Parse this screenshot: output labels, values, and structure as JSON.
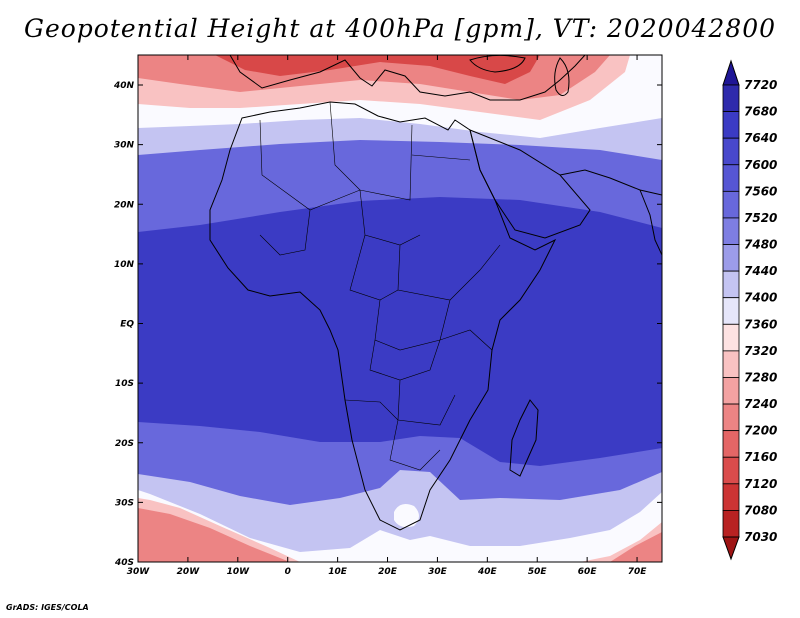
{
  "map": {
    "title": "Geopotential Height at 400hPa [gpm], VT: 2020042800",
    "credit": "GrADS: IGES/COLA",
    "variable": "Geopotential Height",
    "level": "400hPa",
    "units": "gpm",
    "valid_time": "2020042800",
    "lon_labels": [
      "30W",
      "20W",
      "10W",
      "0",
      "10E",
      "20E",
      "30E",
      "40E",
      "50E",
      "60E",
      "70E"
    ],
    "lat_labels": [
      "40N",
      "30N",
      "20N",
      "10N",
      "EQ",
      "10S",
      "20S",
      "30S",
      "40S"
    ],
    "colorbar": {
      "levels": [
        "7720",
        "7680",
        "7640",
        "7600",
        "7560",
        "7520",
        "7480",
        "7440",
        "7400",
        "7360",
        "7320",
        "7280",
        "7240",
        "7200",
        "7160",
        "7120",
        "7080",
        "7030"
      ],
      "colors": [
        "#1f1696",
        "#2e2aac",
        "#3b3bc4",
        "#4848cc",
        "#5656d4",
        "#6868dc",
        "#7e7ee2",
        "#9c9ce9",
        "#c4c4f2",
        "#e6e6fa",
        "#fde2e2",
        "#f9c2c2",
        "#f3a2a2",
        "#ec8484",
        "#e46666",
        "#da4c4c",
        "#cc3434",
        "#b82222",
        "#9e1414"
      ]
    },
    "colors": {
      "deep_blue": "#3b3bc4",
      "mid_blue": "#6868dc",
      "light_blue": "#c4c4f2",
      "white_band": "#fafaff",
      "light_red": "#f9c2c2",
      "mid_red": "#ec8484",
      "deep_red": "#d84848"
    }
  }
}
